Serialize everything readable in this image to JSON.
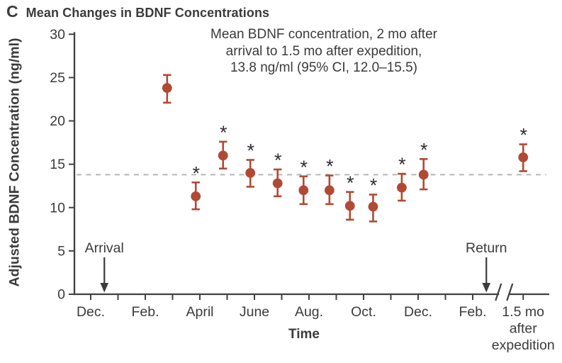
{
  "figure": {
    "panel_letter": "C",
    "title": "Mean Changes in BDNF Concentrations"
  },
  "annotation": {
    "line1": "Mean BDNF concentration, 2 mo after",
    "line2": "arrival to 1.5 mo after expedition,",
    "line3": "13.8 ng/ml (95% CI, 12.0–15.5)"
  },
  "chart_data": {
    "type": "scatter",
    "title": "Mean Changes in BDNF Concentrations",
    "xlabel": "Time",
    "ylabel": "Adjusted BDNF Concentration (ng/ml)",
    "ylim": [
      0,
      30
    ],
    "yticks": [
      0,
      5,
      10,
      15,
      20,
      25,
      30
    ],
    "grid": "off",
    "error_bars": "95% CI",
    "significance_marker": "*",
    "x_ticks": [
      {
        "month": 0,
        "label": "Dec."
      },
      {
        "month": 1,
        "label": ""
      },
      {
        "month": 2,
        "label": "Feb."
      },
      {
        "month": 3,
        "label": ""
      },
      {
        "month": 4,
        "label": "April"
      },
      {
        "month": 5,
        "label": ""
      },
      {
        "month": 6,
        "label": "June"
      },
      {
        "month": 7,
        "label": ""
      },
      {
        "month": 8,
        "label": "Aug."
      },
      {
        "month": 9,
        "label": ""
      },
      {
        "month": 10,
        "label": "Oct."
      },
      {
        "month": 11,
        "label": ""
      },
      {
        "month": 12,
        "label": "Dec."
      },
      {
        "month": 13,
        "label": ""
      },
      {
        "month": 14,
        "label": "Feb."
      },
      {
        "month": 15.85,
        "label": "1.5 mo",
        "sublabels": [
          "after",
          "expedition"
        ]
      }
    ],
    "reference_line": {
      "value": 13.8,
      "style": "dashed"
    },
    "axis_break": {
      "month": 15.15
    },
    "events": [
      {
        "label": "Arrival",
        "month": 0.5
      },
      {
        "label": "Return",
        "month": 14.5
      }
    ],
    "points": [
      {
        "month": 2.8,
        "mean": 23.8,
        "ci_low": 22.1,
        "ci_high": 25.3,
        "significant": false
      },
      {
        "month": 3.85,
        "mean": 11.3,
        "ci_low": 9.8,
        "ci_high": 12.9,
        "significant": true
      },
      {
        "month": 4.85,
        "mean": 16.0,
        "ci_low": 14.5,
        "ci_high": 17.6,
        "significant": true
      },
      {
        "month": 5.85,
        "mean": 14.0,
        "ci_low": 12.4,
        "ci_high": 15.5,
        "significant": true
      },
      {
        "month": 6.85,
        "mean": 12.8,
        "ci_low": 11.3,
        "ci_high": 14.4,
        "significant": true
      },
      {
        "month": 7.8,
        "mean": 12.0,
        "ci_low": 10.4,
        "ci_high": 13.6,
        "significant": true
      },
      {
        "month": 8.75,
        "mean": 12.0,
        "ci_low": 10.4,
        "ci_high": 13.7,
        "significant": true
      },
      {
        "month": 9.5,
        "mean": 10.2,
        "ci_low": 8.6,
        "ci_high": 11.8,
        "significant": true
      },
      {
        "month": 10.35,
        "mean": 10.1,
        "ci_low": 8.4,
        "ci_high": 11.5,
        "significant": true
      },
      {
        "month": 11.4,
        "mean": 12.3,
        "ci_low": 10.8,
        "ci_high": 13.9,
        "significant": true
      },
      {
        "month": 12.2,
        "mean": 13.8,
        "ci_low": 12.1,
        "ci_high": 15.6,
        "significant": true
      },
      {
        "month": 15.85,
        "mean": 15.8,
        "ci_low": 14.2,
        "ci_high": 17.3,
        "significant": true
      }
    ]
  },
  "colors": {
    "point_red": "#b04a35",
    "text": "#3b3b3d",
    "axis": "#414042",
    "dashed_line": "#b5b5b5",
    "star": "#2f2f31",
    "background": "#ffffff"
  }
}
